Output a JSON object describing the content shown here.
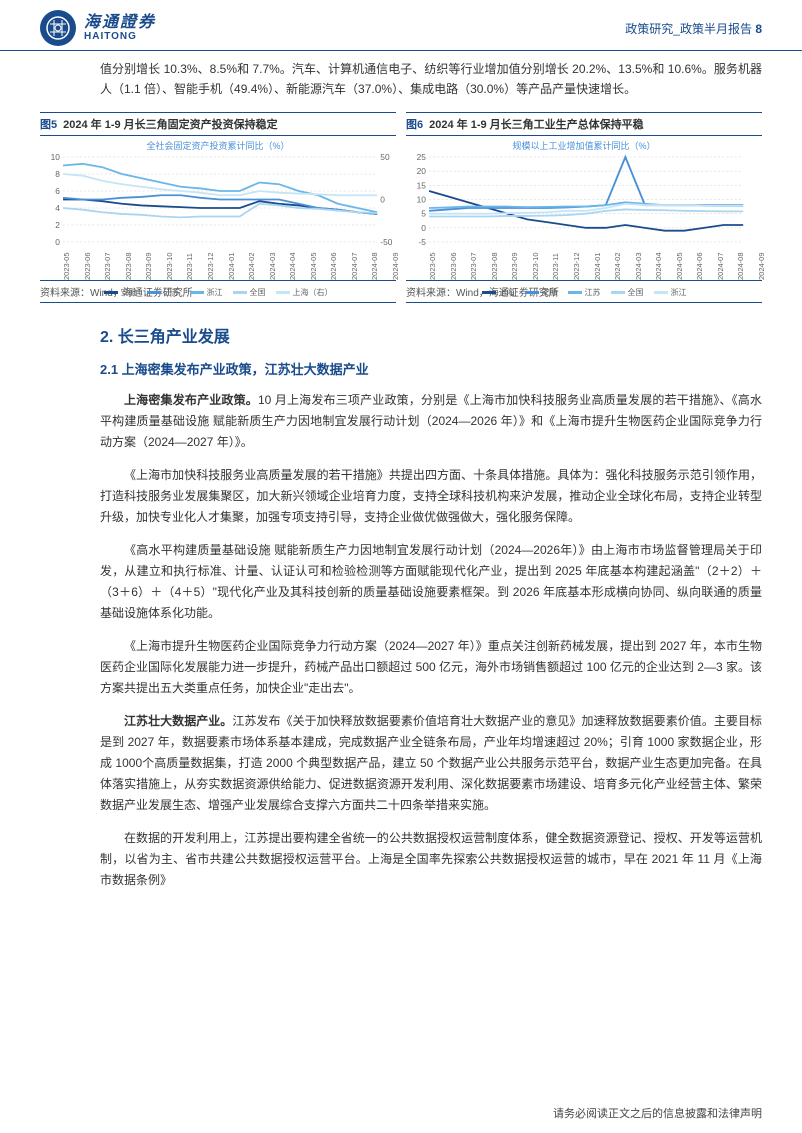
{
  "header": {
    "logo_cn": "海通證券",
    "logo_en": "HAITONG",
    "category": "政策研究_政策半月报告",
    "page_num": "8"
  },
  "intro": "值分别增长 10.3%、8.5%和 7.7%。汽车、计算机通信电子、纺织等行业增加值分别增长 20.2%、13.5%和 10.6%。服务机器人（1.1 倍）、智能手机（49.4%）、新能源汽车（37.0%）、集成电路（30.0%）等产品产量快速增长。",
  "chart5": {
    "tag": "图5",
    "title": "2024 年 1-9 月长三角固定资产投资保持稳定",
    "legend_top": "全社会固定资产投资累计同比（%）",
    "type": "line",
    "x_labels": [
      "2023-05",
      "2023-06",
      "2023-07",
      "2023-08",
      "2023-09",
      "2023-10",
      "2023-11",
      "2023-12",
      "2024-01",
      "2024-02",
      "2024-03",
      "2024-04",
      "2024-05",
      "2024-06",
      "2024-07",
      "2024-08",
      "2024-09"
    ],
    "y_left": {
      "min": 0,
      "max": 10,
      "ticks": [
        0,
        2,
        4,
        6,
        8,
        10
      ]
    },
    "y_right": {
      "min": -50,
      "max": 50,
      "ticks": [
        -50,
        0,
        50
      ]
    },
    "series": [
      {
        "name": "安徽",
        "color": "#1a4b8c",
        "values": [
          5.0,
          5.0,
          4.8,
          4.5,
          4.3,
          4.2,
          4.1,
          4.0,
          4.0,
          4.0,
          4.8,
          4.5,
          4.3,
          4.0,
          3.8,
          3.5,
          3.3
        ]
      },
      {
        "name": "江苏",
        "color": "#4a90d9",
        "values": [
          5.2,
          5.0,
          5.0,
          5.2,
          5.3,
          5.5,
          5.5,
          5.2,
          5.0,
          5.0,
          5.0,
          5.0,
          4.5,
          4.0,
          3.8,
          3.5,
          3.3
        ]
      },
      {
        "name": "浙江",
        "color": "#6bb6e8",
        "values": [
          9.0,
          9.2,
          8.8,
          8.0,
          7.5,
          7.0,
          6.5,
          6.3,
          6.0,
          6.0,
          7.0,
          6.8,
          6.0,
          5.5,
          4.5,
          4.0,
          3.5
        ]
      },
      {
        "name": "全国",
        "color": "#a8d5f2",
        "values": [
          4.0,
          3.8,
          3.5,
          3.3,
          3.2,
          3.0,
          2.9,
          3.0,
          3.0,
          3.0,
          4.5,
          4.3,
          4.0,
          3.9,
          3.7,
          3.5,
          3.4
        ]
      },
      {
        "name": "上海（右）",
        "color": "#c5e5f7",
        "values": [
          30,
          28,
          22,
          18,
          15,
          12,
          10,
          8,
          5,
          5,
          10,
          8,
          7,
          6,
          5,
          5,
          5
        ],
        "axis": "right"
      }
    ],
    "legend_bottom": [
      "安徽",
      "江苏",
      "浙江",
      "全国",
      "上海（右）"
    ],
    "source": "资料来源：Wind，海通证券研究所"
  },
  "chart6": {
    "tag": "图6",
    "title": "2024 年 1-9 月长三角工业生产总体保持平稳",
    "legend_top": "规模以上工业增加值累计同比（%）",
    "type": "line",
    "x_labels": [
      "2023-05",
      "2023-06",
      "2023-07",
      "2023-08",
      "2023-09",
      "2023-10",
      "2023-11",
      "2023-12",
      "2024-01",
      "2024-02",
      "2024-03",
      "2024-04",
      "2024-05",
      "2024-06",
      "2024-07",
      "2024-08",
      "2024-09"
    ],
    "y_left": {
      "min": -5,
      "max": 25,
      "ticks": [
        -5,
        0,
        5,
        10,
        15,
        20,
        25
      ]
    },
    "series": [
      {
        "name": "上海",
        "color": "#1a4b8c",
        "values": [
          13,
          11,
          9,
          7,
          5,
          3,
          2,
          1,
          0,
          0,
          1,
          0,
          -1,
          -1,
          0,
          1,
          1
        ]
      },
      {
        "name": "安徽",
        "color": "#4a90d9",
        "values": [
          6,
          6.5,
          7,
          7,
          7,
          7,
          7,
          7.2,
          7.5,
          8,
          25,
          8,
          8,
          8,
          8,
          8,
          8
        ]
      },
      {
        "name": "江苏",
        "color": "#6bb6e8",
        "values": [
          7,
          7.2,
          7.5,
          7.5,
          7.5,
          7.3,
          7.4,
          7.5,
          7.5,
          8,
          9,
          8.5,
          8,
          8,
          7.8,
          7.7,
          7.7
        ]
      },
      {
        "name": "全国",
        "color": "#a8d5f2",
        "values": [
          4,
          4,
          4,
          4,
          4.2,
          4.2,
          4.3,
          4.5,
          5,
          6,
          6.5,
          6.3,
          6.2,
          6,
          5.9,
          5.8,
          5.8
        ]
      },
      {
        "name": "浙江",
        "color": "#c5e5f7",
        "values": [
          5,
          5,
          5,
          5,
          5.2,
          5.3,
          5.5,
          6,
          6,
          7,
          8.5,
          8,
          8,
          8,
          7.8,
          7.8,
          7.8
        ]
      }
    ],
    "legend_bottom": [
      "上海",
      "安徽",
      "江苏",
      "全国",
      "浙江"
    ],
    "source": "资料来源：Wind，海通证券研究所"
  },
  "section2": {
    "h2": "2. 长三角产业发展",
    "h3": "2.1 上海密集发布产业政策，江苏壮大数据产业",
    "paras": [
      {
        "lead": "上海密集发布产业政策。",
        "body": "10 月上海发布三项产业政策，分别是《上海市加快科技服务业高质量发展的若干措施》、《高水平构建质量基础设施 赋能新质生产力因地制宜发展行动计划（2024—2026 年）》和《上海市提升生物医药企业国际竞争力行动方案（2024—2027 年）》。"
      },
      {
        "lead": "",
        "body": "《上海市加快科技服务业高质量发展的若干措施》共提出四方面、十条具体措施。具体为：强化科技服务示范引领作用，打造科技服务业发展集聚区，加大新兴领域企业培育力度，支持全球科技机构来沪发展，推动企业全球化布局，支持企业转型升级，加快专业化人才集聚，加强专项支持引导，支持企业做优做强做大，强化服务保障。"
      },
      {
        "lead": "",
        "body": "《高水平构建质量基础设施 赋能新质生产力因地制宜发展行动计划（2024—2026年）》由上海市市场监督管理局关于印发，从建立和执行标准、计量、认证认可和检验检测等方面赋能现代化产业，提出到 2025 年底基本构建起涵盖\"（2＋2）＋（3＋6）＋（4＋5）\"现代化产业及其科技创新的质量基础设施要素框架。到 2026 年底基本形成横向协同、纵向联通的质量基础设施体系化功能。"
      },
      {
        "lead": "",
        "body": "《上海市提升生物医药企业国际竞争力行动方案（2024—2027 年）》重点关注创新药械发展，提出到 2027 年，本市生物医药企业国际化发展能力进一步提升，药械产品出口额超过 500 亿元，海外市场销售额超过 100 亿元的企业达到 2—3 家。该方案共提出五大类重点任务，加快企业\"走出去\"。"
      },
      {
        "lead": "江苏壮大数据产业。",
        "body": "江苏发布《关于加快释放数据要素价值培育壮大数据产业的意见》加速释放数据要素价值。主要目标是到 2027 年，数据要素市场体系基本建成，完成数据产业全链条布局，产业年均增速超过 20%；引育 1000 家数据企业，形成 1000个高质量数据集，打造 2000 个典型数据产品，建立 50 个数据产业公共服务示范平台，数据产业生态更加完备。在具体落实措施上，从夯实数据资源供给能力、促进数据资源开发利用、深化数据要素市场建设、培育多元化产业经营主体、繁荣数据产业发展生态、增强产业发展综合支撑六方面共二十四条举措来实施。"
      },
      {
        "lead": "",
        "body": "在数据的开发利用上，江苏提出要构建全省统一的公共数据授权运营制度体系，健全数据资源登记、授权、开发等运营机制，以省为主、省市共建公共数据授权运营平台。上海是全国率先探索公共数据授权运营的城市，早在 2021 年 11 月《上海市数据条例》"
      }
    ]
  },
  "footer": "请务必阅读正文之后的信息披露和法律声明",
  "colors": {
    "brand": "#1a4b8c",
    "series": [
      "#1a4b8c",
      "#4a90d9",
      "#6bb6e8",
      "#a8d5f2",
      "#c5e5f7"
    ]
  }
}
